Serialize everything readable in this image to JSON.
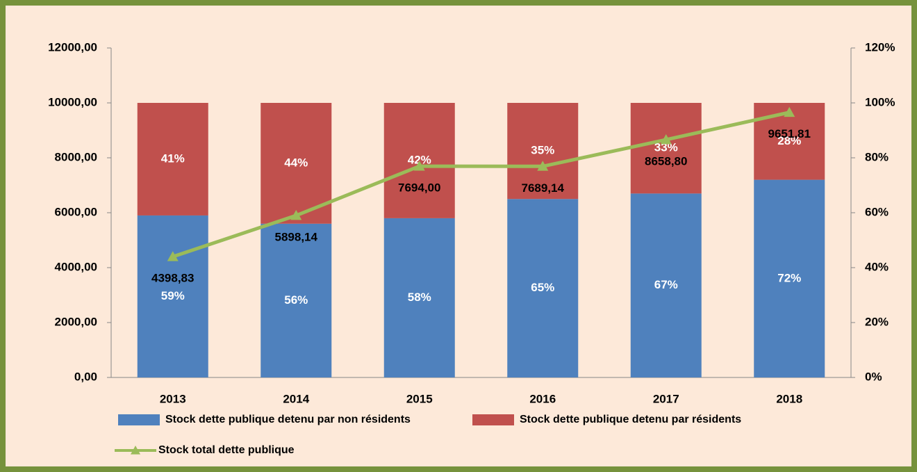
{
  "chart_data": {
    "type": "bar",
    "stacked": true,
    "categories": [
      "2013",
      "2014",
      "2015",
      "2016",
      "2017",
      "2018"
    ],
    "series": [
      {
        "name": "Stock dette publique detenu par non résidents",
        "color": "#4f81bd",
        "axis": "y2",
        "values": [
          59,
          56,
          58,
          65,
          67,
          72
        ],
        "value_labels": [
          "59%",
          "56%",
          "58%",
          "65%",
          "67%",
          "72%"
        ]
      },
      {
        "name": "Stock dette publique detenu par résidents",
        "color": "#c0504d",
        "axis": "y2",
        "values": [
          41,
          44,
          42,
          35,
          33,
          28
        ],
        "value_labels": [
          "41%",
          "44%",
          "42%",
          "35%",
          "33%",
          "28%"
        ]
      },
      {
        "name": "Stock total dette publique",
        "color": "#9bbb59",
        "type": "line",
        "axis": "y",
        "values": [
          4398.83,
          5898.14,
          7694.0,
          7689.14,
          8658.8,
          9651.81
        ],
        "value_labels": [
          "4398,83",
          "5898,14",
          "7694,00",
          "7689,14",
          "8658,80",
          "9651,81"
        ]
      }
    ],
    "ylim": [
      0,
      12000
    ],
    "yticks": [
      {
        "value": 0,
        "label": "0,00"
      },
      {
        "value": 2000,
        "label": "2000,00"
      },
      {
        "value": 4000,
        "label": "4000,00"
      },
      {
        "value": 6000,
        "label": "6000,00"
      },
      {
        "value": 8000,
        "label": "8000,00"
      },
      {
        "value": 10000,
        "label": "10000,00"
      },
      {
        "value": 12000,
        "label": "12000,00"
      }
    ],
    "y2lim": [
      0,
      120
    ],
    "y2ticks": [
      {
        "value": 0,
        "label": "0%"
      },
      {
        "value": 20,
        "label": "20%"
      },
      {
        "value": 40,
        "label": "40%"
      },
      {
        "value": 60,
        "label": "60%"
      },
      {
        "value": 80,
        "label": "80%"
      },
      {
        "value": 100,
        "label": "100%"
      },
      {
        "value": 120,
        "label": "120%"
      }
    ],
    "grid": false,
    "legend": "bottom"
  }
}
